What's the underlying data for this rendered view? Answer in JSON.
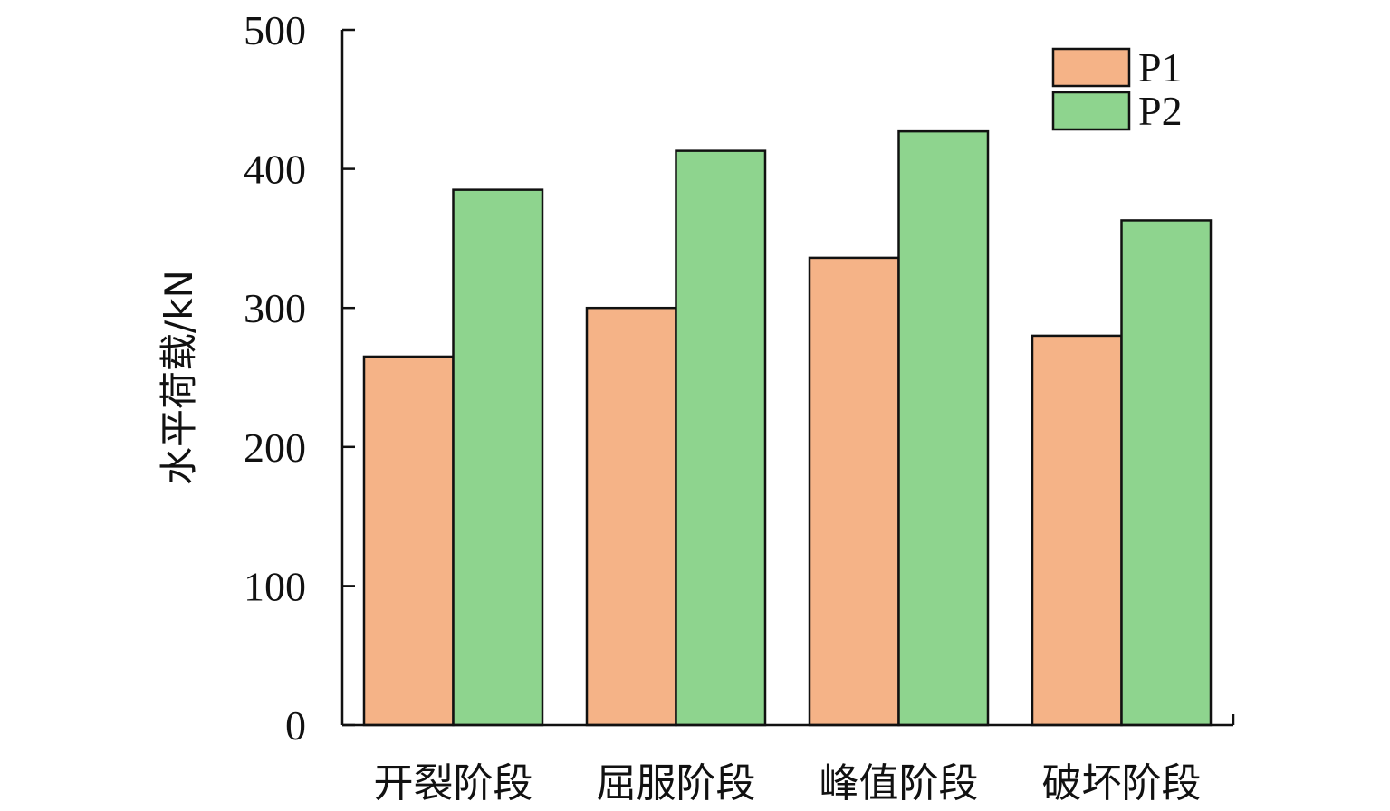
{
  "chart_data": {
    "type": "bar",
    "categories": [
      "开裂阶段",
      "屈服阶段",
      "峰值阶段",
      "破坏阶段"
    ],
    "series": [
      {
        "name": "P1",
        "values": [
          265,
          300,
          336,
          280
        ],
        "color": "#F5B387"
      },
      {
        "name": "P2",
        "values": [
          385,
          413,
          427,
          363
        ],
        "color": "#8ED48E"
      }
    ],
    "xlabel": "",
    "ylabel": "水平荷载/kN",
    "ylim": [
      0,
      500
    ],
    "yticks": [
      0,
      100,
      200,
      300,
      400,
      500
    ],
    "grid": false,
    "legend_position": "top-right"
  }
}
